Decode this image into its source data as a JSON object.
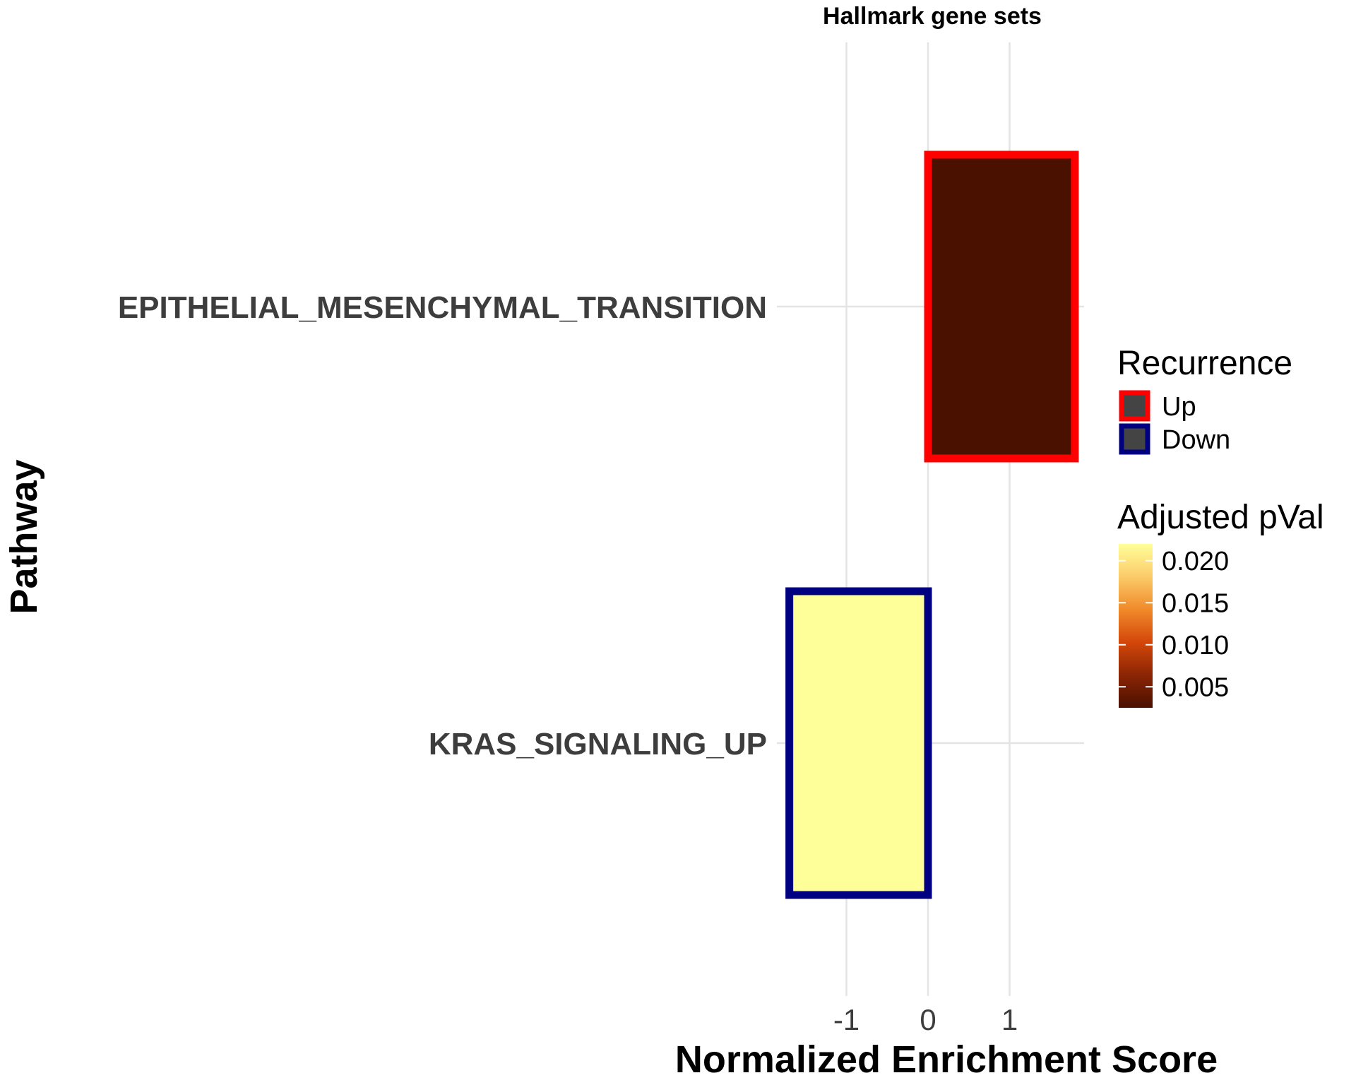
{
  "chart_data": {
    "type": "bar",
    "orientation": "horizontal",
    "title": "Hallmark gene sets",
    "xlabel": "Normalized Enrichment Score",
    "ylabel": "Pathway",
    "categories": [
      "EPITHELIAL_MESENCHYMAL_TRANSITION",
      "KRAS_SIGNALING_UP"
    ],
    "values": [
      1.8,
      -1.7
    ],
    "adjusted_pval": [
      0.0025,
      0.022
    ],
    "recurrence": [
      "Up",
      "Down"
    ],
    "xlim": [
      -1.9,
      1.9
    ],
    "xticks": [
      "-1",
      "0",
      "1"
    ],
    "grid": true,
    "legend_placement": "right",
    "legends": {
      "recurrence": {
        "title": "Recurrence",
        "items": [
          {
            "label": "Up",
            "color": "#ff0000"
          },
          {
            "label": "Down",
            "color": "#000080"
          }
        ]
      },
      "pval": {
        "title": "Adjusted pVal",
        "ticks": [
          "0.020",
          "0.015",
          "0.010",
          "0.005"
        ],
        "tick_values": [
          0.02,
          0.015,
          0.01,
          0.005
        ],
        "range": [
          0.0025,
          0.022
        ],
        "colors": [
          "#4a1000",
          "#8b2504",
          "#d4470a",
          "#f08a2a",
          "#fccb6a",
          "#ffff99"
        ]
      }
    }
  }
}
